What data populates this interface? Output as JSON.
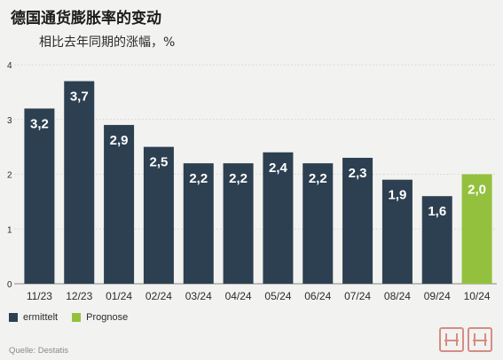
{
  "title": "德国通货膨胀率的变动",
  "subtitle": "相比去年同期的涨幅，%",
  "colors": {
    "ermittelt": "#2d4051",
    "prognose": "#93c13e",
    "grid": "#c8c8c8",
    "axis_text": "#2b2b2b"
  },
  "legend": {
    "ermittelt_label": "ermittelt",
    "prognose_label": "Prognose"
  },
  "source": "Quelle: Destatis",
  "chart_data": {
    "type": "bar",
    "categories": [
      "11/23",
      "12/23",
      "01/24",
      "02/24",
      "03/24",
      "04/24",
      "05/24",
      "06/24",
      "07/24",
      "08/24",
      "09/24",
      "10/24"
    ],
    "values": [
      3.2,
      3.7,
      2.9,
      2.5,
      2.2,
      2.2,
      2.4,
      2.2,
      2.3,
      1.9,
      1.6,
      2.0
    ],
    "value_labels": [
      "3,2",
      "3,7",
      "2,9",
      "2,5",
      "2,2",
      "2,2",
      "2,4",
      "2,2",
      "2,3",
      "1,9",
      "1,6",
      "2,0"
    ],
    "series_status": [
      "ermittelt",
      "ermittelt",
      "ermittelt",
      "ermittelt",
      "ermittelt",
      "ermittelt",
      "ermittelt",
      "ermittelt",
      "ermittelt",
      "ermittelt",
      "ermittelt",
      "prognose"
    ],
    "ylim": [
      0,
      4
    ],
    "yticks": [
      "0",
      "1",
      "2",
      "3",
      "4"
    ],
    "grid": true,
    "legend_position": "bottom-left"
  }
}
